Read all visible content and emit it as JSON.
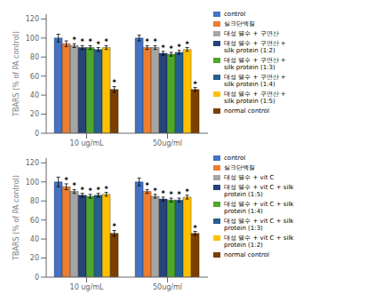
{
  "chart_data": [
    {
      "type": "bar",
      "ylabel": "TBARS (% of PA control)",
      "categories": [
        "10 ug/mL",
        "50ug/ml"
      ],
      "ylim": [
        0,
        125
      ],
      "yticks": [
        0,
        20,
        40,
        60,
        80,
        100,
        120
      ],
      "grid": false,
      "legend": "right",
      "annotation": "*",
      "series": [
        {
          "name": "control",
          "color": "#4472C4",
          "values": [
            100,
            100
          ],
          "errors": [
            4,
            3
          ],
          "significant": [
            false,
            false
          ]
        },
        {
          "name": "실크단백질",
          "color": "#ED7D31",
          "values": [
            94,
            90
          ],
          "errors": [
            3,
            2
          ],
          "significant": [
            false,
            true
          ]
        },
        {
          "name": "대성 열수 + 구연산",
          "color": "#A5A5A5",
          "values": [
            92,
            90
          ],
          "errors": [
            2,
            2
          ],
          "significant": [
            true,
            true
          ]
        },
        {
          "name": "대성 열수 + 구연산 +\nsilk protein (1:2)",
          "color": "#264478",
          "values": [
            90,
            84
          ],
          "errors": [
            2,
            2
          ],
          "significant": [
            true,
            true
          ]
        },
        {
          "name": "대성 열수 + 구연산 +\nsilk protein (1:3)",
          "color": "#4EA72A",
          "values": [
            90,
            83
          ],
          "errors": [
            2,
            2
          ],
          "significant": [
            true,
            true
          ]
        },
        {
          "name": "대성 열수 + 구연산 +\nsilk protein (1:4)",
          "color": "#255E91",
          "values": [
            88,
            85
          ],
          "errors": [
            2,
            2
          ],
          "significant": [
            true,
            true
          ]
        },
        {
          "name": "대성 열수 + 구연산 +\nsilk protein (1:5)",
          "color": "#FFC000",
          "values": [
            90,
            88
          ],
          "errors": [
            2,
            2
          ],
          "significant": [
            true,
            true
          ]
        },
        {
          "name": "normal control",
          "color": "#7B3F00",
          "values": [
            46,
            46
          ],
          "errors": [
            3,
            2
          ],
          "significant": [
            true,
            true
          ]
        }
      ]
    },
    {
      "type": "bar",
      "ylabel": "TBARS (% of PA control)",
      "categories": [
        "10 ug/mL",
        "50ug/ml"
      ],
      "ylim": [
        0,
        125
      ],
      "yticks": [
        0,
        20,
        40,
        60,
        80,
        100,
        120
      ],
      "grid": false,
      "legend": "right",
      "annotation": "*",
      "series": [
        {
          "name": "control",
          "color": "#4472C4",
          "values": [
            100,
            100
          ],
          "errors": [
            5,
            4
          ],
          "significant": [
            false,
            false
          ]
        },
        {
          "name": "실크단백질",
          "color": "#ED7D31",
          "values": [
            95,
            90
          ],
          "errors": [
            3,
            2
          ],
          "significant": [
            true,
            true
          ]
        },
        {
          "name": "대성 열수 + vit C",
          "color": "#A5A5A5",
          "values": [
            90,
            85
          ],
          "errors": [
            2,
            2
          ],
          "significant": [
            true,
            true
          ]
        },
        {
          "name": "대성 열수 + vit C + silk\nprotein (1:5)",
          "color": "#264478",
          "values": [
            86,
            82
          ],
          "errors": [
            2,
            2
          ],
          "significant": [
            true,
            true
          ]
        },
        {
          "name": "대성 열수 + vit C + silk\nprotein (1:4)",
          "color": "#4EA72A",
          "values": [
            85,
            81
          ],
          "errors": [
            2,
            2
          ],
          "significant": [
            true,
            true
          ]
        },
        {
          "name": "대성 열수 + vit C + silk\nprotein (1:3)",
          "color": "#255E91",
          "values": [
            86,
            81
          ],
          "errors": [
            2,
            2
          ],
          "significant": [
            true,
            true
          ]
        },
        {
          "name": "대성 열수 + vit C + silk\nprotein (1:2)",
          "color": "#FFC000",
          "values": [
            87,
            84
          ],
          "errors": [
            2,
            2
          ],
          "significant": [
            true,
            true
          ]
        },
        {
          "name": "normal control",
          "color": "#7B3F00",
          "values": [
            46,
            46
          ],
          "errors": [
            3,
            2
          ],
          "significant": [
            true,
            true
          ]
        }
      ]
    }
  ]
}
